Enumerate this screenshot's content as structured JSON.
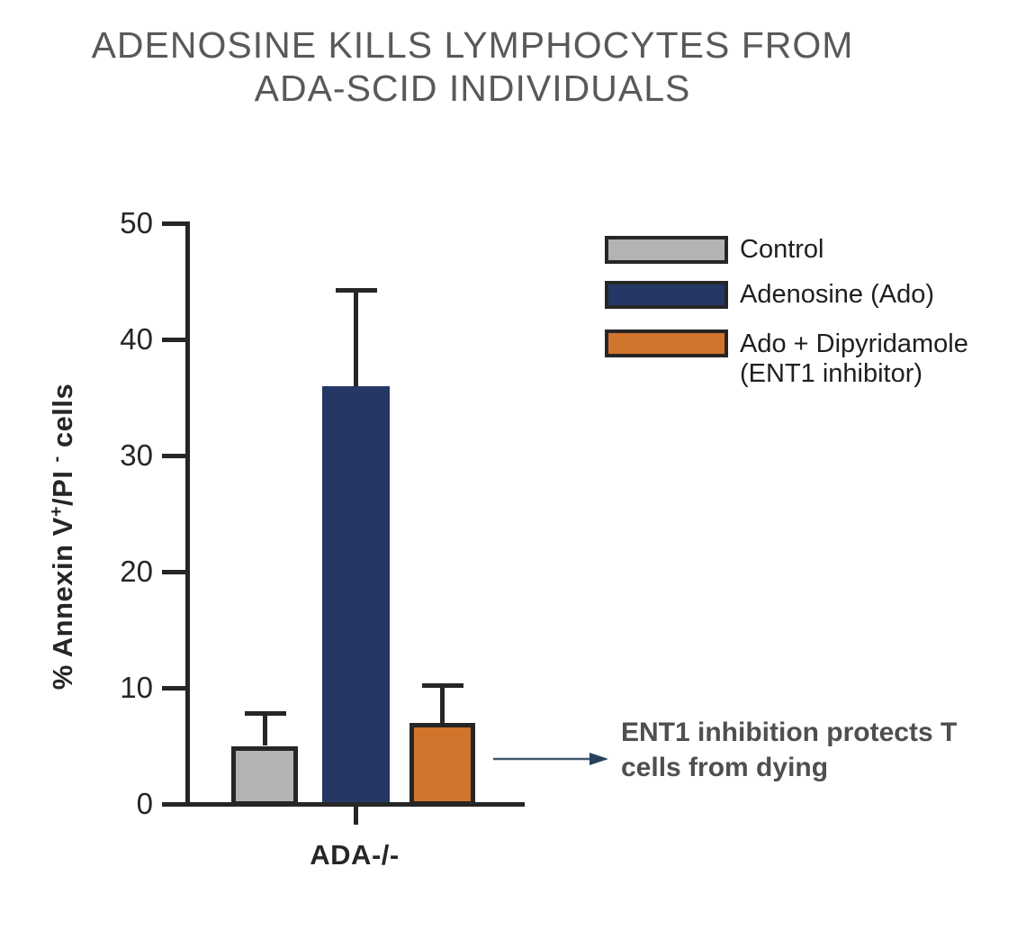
{
  "title": {
    "line1": "ADENOSINE KILLS LYMPHOCYTES FROM",
    "line2": "ADA-SCID INDIVIDUALS"
  },
  "chart_data": {
    "type": "bar",
    "title": "ADENOSINE KILLS LYMPHOCYTES FROM ADA-SCID INDIVIDUALS",
    "categories": [
      "ADA-/-"
    ],
    "series": [
      {
        "name": "Control",
        "values": [
          5
        ],
        "error_plus": [
          2.8
        ],
        "color": "#b3b3b3"
      },
      {
        "name": "Adenosine (Ado)",
        "values": [
          36
        ],
        "error_plus": [
          8.3
        ],
        "color": "#253765"
      },
      {
        "name": "Ado + Dipyridamole (ENT1 inhibitor)",
        "values": [
          7
        ],
        "error_plus": [
          3.2
        ],
        "color": "#d1742c"
      }
    ],
    "xlabel": "",
    "ylabel": "% Annexin V+/PI - cells",
    "ylim": [
      0,
      50
    ],
    "yticks": [
      0,
      10,
      20,
      30,
      40,
      50
    ],
    "grid": false,
    "legend_position": "top-right",
    "error_bars": "upper only, capped"
  },
  "ylabel_parts": {
    "pre": "% Annexin V",
    "sup_plus": "+",
    "mid": "/PI ",
    "sup_minus": "-",
    "post": " cells"
  },
  "legend": {
    "rows": [
      {
        "line1": "Control"
      },
      {
        "line1": "Adenosine (Ado)"
      },
      {
        "line1": "Ado + Dipyridamole",
        "line2": "(ENT1 inhibitor)"
      }
    ]
  },
  "annotation": {
    "line1": "ENT1 inhibition protects T",
    "line2": "cells from dying"
  },
  "colors": {
    "axis": "#262626",
    "title_text": "#595959",
    "annotation_text": "#4f4f4f",
    "arrow": "#36506b",
    "bar_control": "#b3b3b3",
    "bar_adenosine": "#253765",
    "bar_dipyridamole": "#d1742c"
  }
}
